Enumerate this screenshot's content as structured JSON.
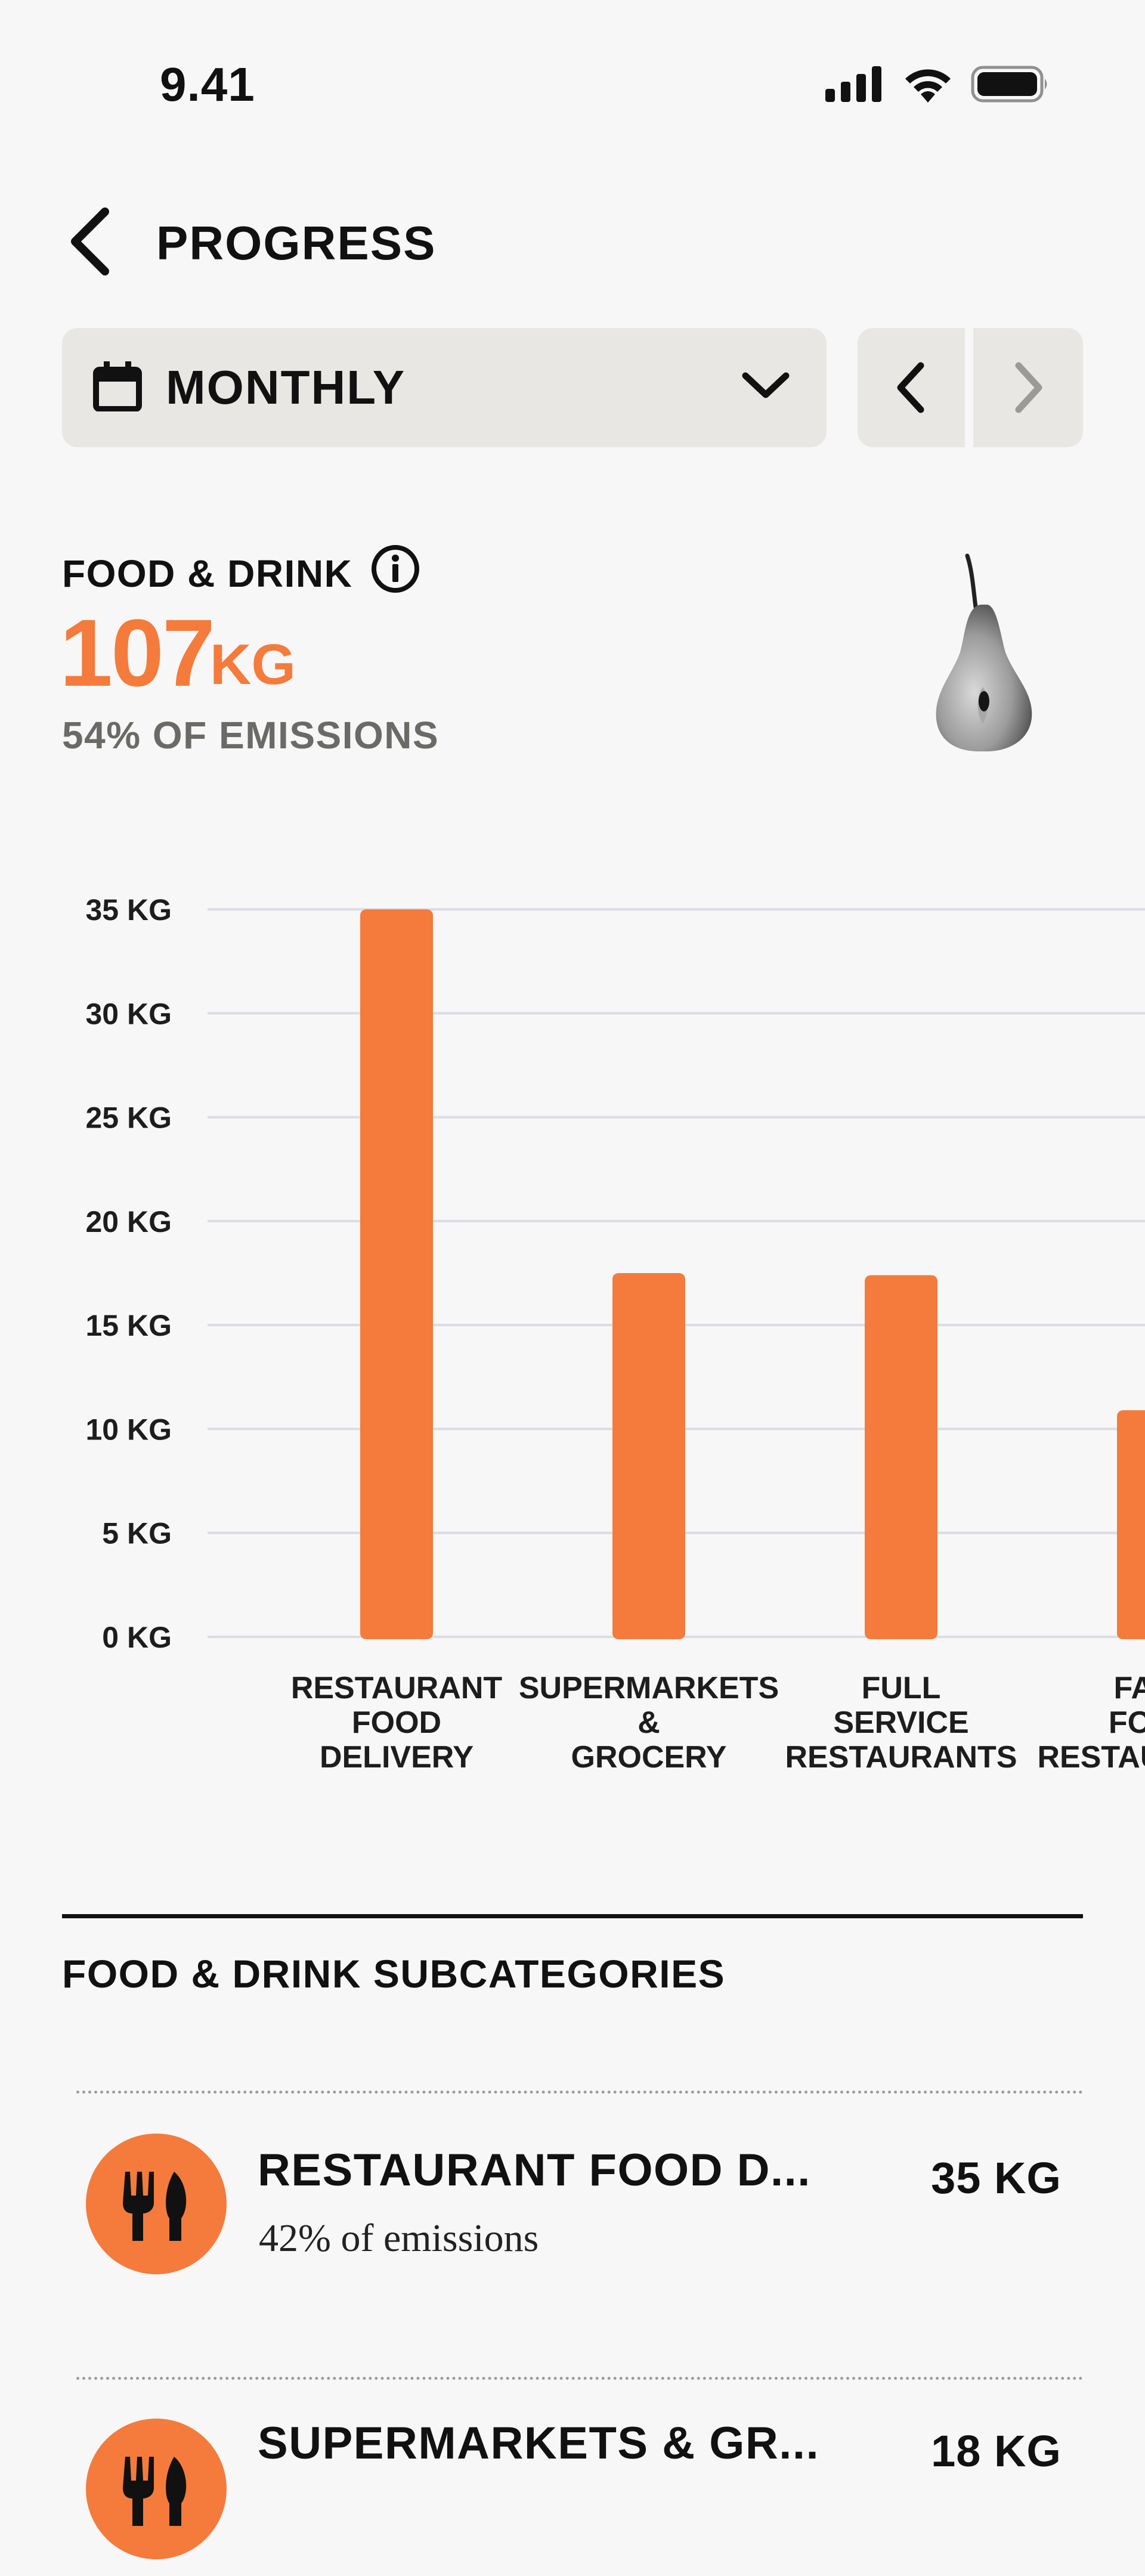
{
  "status_bar": {
    "time": "9.41"
  },
  "header": {
    "title": "PROGRESS"
  },
  "period_selector": {
    "label": "MONTHLY"
  },
  "summary": {
    "category": "FOOD & DRINK",
    "value": "107",
    "unit": "KG",
    "share": "54% OF EMISSIONS",
    "accent_color": "#f47b3b"
  },
  "chart_data": {
    "type": "bar",
    "categories": [
      [
        "RESTAURANT",
        "FOOD",
        "DELIVERY"
      ],
      [
        "SUPERMARKETS",
        "&",
        "GROCERY"
      ],
      [
        "FULL",
        "SERVICE",
        "RESTAURANTS"
      ],
      [
        "FAST",
        "FOOD",
        "RESTAURANTS"
      ]
    ],
    "values": [
      35,
      17.5,
      17.4,
      10.9
    ],
    "ylim": [
      0,
      35
    ],
    "yticks": [
      "0 KG",
      "5 KG",
      "10 KG",
      "15 KG",
      "20 KG",
      "25 KG",
      "30 KG",
      "35 KG"
    ],
    "grid": true,
    "color": "#f47b3b"
  },
  "subcategories": {
    "heading": "FOOD & DRINK SUBCATEGORIES",
    "items": [
      {
        "name": "RESTAURANT FOOD D...",
        "share": "42% of emissions",
        "value": "35 KG",
        "icon": "fork-knife-icon"
      },
      {
        "name": "SUPERMARKETS & GR...",
        "share": "",
        "value": "18 KG",
        "icon": "fork-knife-icon"
      }
    ]
  }
}
